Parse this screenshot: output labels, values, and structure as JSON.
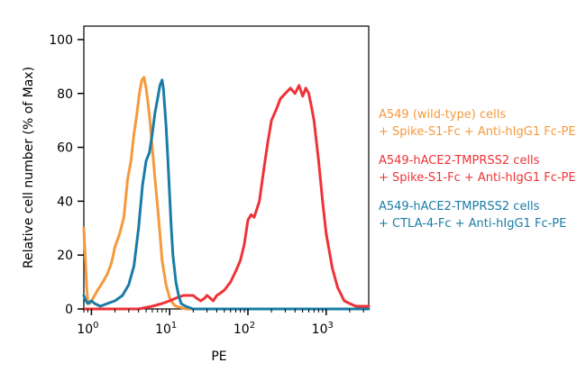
{
  "chart_data": {
    "type": "line",
    "xlabel": "PE",
    "ylabel": "Relative cell number (% of Max)",
    "x_scale": "log",
    "xlim": [
      0.8,
      3500
    ],
    "ylim": [
      0,
      105
    ],
    "x_ticks": [
      {
        "value": 1,
        "base": "10",
        "exp": "0"
      },
      {
        "value": 10,
        "base": "10",
        "exp": "1"
      },
      {
        "value": 100,
        "base": "10",
        "exp": "2"
      },
      {
        "value": 1000,
        "base": "10",
        "exp": "3"
      }
    ],
    "y_ticks": [
      0,
      20,
      40,
      60,
      80,
      100
    ],
    "grid": false,
    "legend_position": "right",
    "series": [
      {
        "name": "A549 (wild-type) cells + Spike-S1-Fc + Anti-hIgG1 Fc-PE",
        "legend_lines": [
          "A549 (wild-type) cells",
          "+ Spike-S1-Fc + Anti-hIgG1 Fc-PE"
        ],
        "color": "#f5993d",
        "x": [
          0.8,
          0.83,
          0.87,
          0.9,
          0.95,
          1.0,
          1.1,
          1.2,
          1.4,
          1.6,
          1.8,
          2.0,
          2.3,
          2.6,
          2.9,
          3.2,
          3.5,
          3.8,
          4.1,
          4.4,
          4.7,
          5.0,
          5.3,
          5.6,
          6.0,
          6.5,
          7.0,
          7.5,
          8.0,
          9.0,
          10,
          11,
          12,
          14,
          16,
          20,
          25,
          40,
          100,
          1000,
          3500
        ],
        "y": [
          30,
          20,
          8,
          3,
          2,
          3,
          5,
          7,
          10,
          13,
          17,
          23,
          28,
          34,
          48,
          55,
          65,
          72,
          80,
          85,
          86,
          82,
          76,
          70,
          60,
          48,
          38,
          28,
          18,
          9,
          4,
          2,
          1,
          0.5,
          0,
          0,
          0,
          0,
          0,
          0,
          0
        ]
      },
      {
        "name": "A549-hACE2-TMPRSS2 cells + Spike-S1-Fc + Anti-hIgG1 Fc-PE",
        "legend_lines": [
          "A549-hACE2-TMPRSS2 cells",
          "+ Spike-S1-Fc + Anti-hIgG1 Fc-PE"
        ],
        "color": "#ee3338",
        "x": [
          0.8,
          1.0,
          2.0,
          4.0,
          6.0,
          8.0,
          10,
          12,
          15,
          18,
          20,
          22,
          25,
          28,
          30,
          33,
          36,
          40,
          45,
          50,
          60,
          70,
          80,
          90,
          100,
          110,
          120,
          140,
          160,
          180,
          200,
          230,
          260,
          300,
          350,
          400,
          450,
          500,
          550,
          600,
          650,
          700,
          800,
          900,
          1000,
          1200,
          1400,
          1700,
          2000,
          2400,
          2800,
          3500
        ],
        "y": [
          0,
          0,
          0,
          0,
          1,
          2,
          3,
          4,
          5,
          5,
          5,
          4,
          3,
          4,
          5,
          4,
          3,
          5,
          6,
          7,
          10,
          14,
          18,
          24,
          33,
          35,
          34,
          40,
          52,
          62,
          70,
          74,
          78,
          80,
          82,
          80,
          83,
          79,
          82,
          80,
          75,
          70,
          55,
          40,
          28,
          15,
          8,
          3,
          2,
          1,
          1,
          1
        ]
      },
      {
        "name": "A549-hACE2-TMPRSS2 cells + CTLA-4-Fc + Anti-hIgG1 Fc-PE",
        "legend_lines": [
          "A549-hACE2-TMPRSS2 cells",
          "+ CTLA-4-Fc + Anti-hIgG1 Fc-PE"
        ],
        "color": "#1a7da5",
        "x": [
          0.8,
          0.85,
          0.9,
          1.0,
          1.1,
          1.3,
          1.6,
          2.0,
          2.5,
          3.0,
          3.5,
          4.0,
          4.5,
          5.0,
          5.5,
          6.0,
          6.5,
          7.0,
          7.5,
          8.0,
          8.3,
          8.6,
          9.0,
          9.5,
          10,
          10.5,
          11,
          12,
          13,
          14,
          16,
          20,
          30,
          100,
          1000,
          3500
        ],
        "y": [
          5,
          3,
          2,
          3,
          2,
          1,
          2,
          3,
          5,
          9,
          16,
          30,
          46,
          55,
          58,
          65,
          73,
          78,
          83,
          85,
          82,
          76,
          68,
          55,
          42,
          30,
          20,
          10,
          5,
          2,
          1,
          0,
          0,
          0,
          0,
          0
        ]
      }
    ]
  }
}
